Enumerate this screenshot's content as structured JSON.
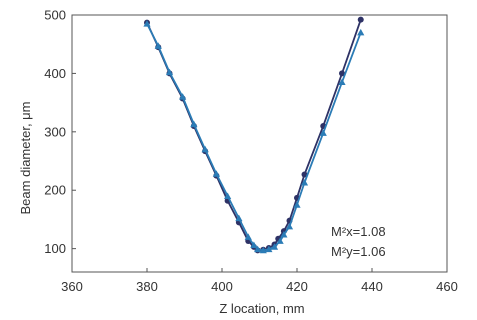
{
  "chart_data": {
    "type": "line",
    "xlabel": "Z location, mm",
    "ylabel": "Beam diameter, μm",
    "xlim": [
      360,
      460
    ],
    "ylim": [
      60,
      500
    ],
    "x_ticks": [
      "360",
      "380",
      "400",
      "420",
      "440",
      "460"
    ],
    "y_ticks": [
      "100",
      "200",
      "300",
      "400",
      "500"
    ],
    "x_tick_values": [
      360,
      380,
      400,
      420,
      440,
      460
    ],
    "y_tick_values": [
      100,
      200,
      300,
      400,
      500
    ],
    "grid": false,
    "annotations": [
      "M²x=1.08",
      "M²y=1.06"
    ],
    "series": [
      {
        "color": "#2e3266",
        "marker": "circle",
        "points": [
          [
            380.0,
            487
          ],
          [
            383.0,
            445
          ],
          [
            386.0,
            400
          ],
          [
            389.5,
            357
          ],
          [
            392.5,
            310
          ],
          [
            395.5,
            267
          ],
          [
            398.5,
            225
          ],
          [
            401.5,
            182
          ],
          [
            404.5,
            145
          ],
          [
            407.0,
            113
          ],
          [
            408.5,
            103
          ],
          [
            409.5,
            97
          ],
          [
            411.0,
            98
          ],
          [
            412.5,
            101
          ],
          [
            414.0,
            107
          ],
          [
            415.0,
            117
          ],
          [
            416.5,
            130
          ],
          [
            418.0,
            148
          ],
          [
            420.0,
            187
          ],
          [
            422.0,
            227
          ],
          [
            427.0,
            310
          ],
          [
            432.0,
            400
          ],
          [
            437.0,
            492
          ]
        ]
      },
      {
        "color": "#2b7cb6",
        "marker": "triangle",
        "points": [
          [
            380.0,
            485
          ],
          [
            383.0,
            447
          ],
          [
            386.0,
            402
          ],
          [
            389.5,
            360
          ],
          [
            392.5,
            313
          ],
          [
            395.5,
            270
          ],
          [
            398.5,
            228
          ],
          [
            401.5,
            190
          ],
          [
            404.5,
            152
          ],
          [
            407.0,
            120
          ],
          [
            408.5,
            106
          ],
          [
            409.5,
            99
          ],
          [
            411.0,
            97
          ],
          [
            412.5,
            99
          ],
          [
            414.0,
            103
          ],
          [
            415.5,
            113
          ],
          [
            416.5,
            124
          ],
          [
            418.0,
            138
          ],
          [
            420.0,
            175
          ],
          [
            422.0,
            213
          ],
          [
            427.0,
            298
          ],
          [
            432.0,
            385
          ],
          [
            437.0,
            470
          ]
        ]
      }
    ]
  }
}
